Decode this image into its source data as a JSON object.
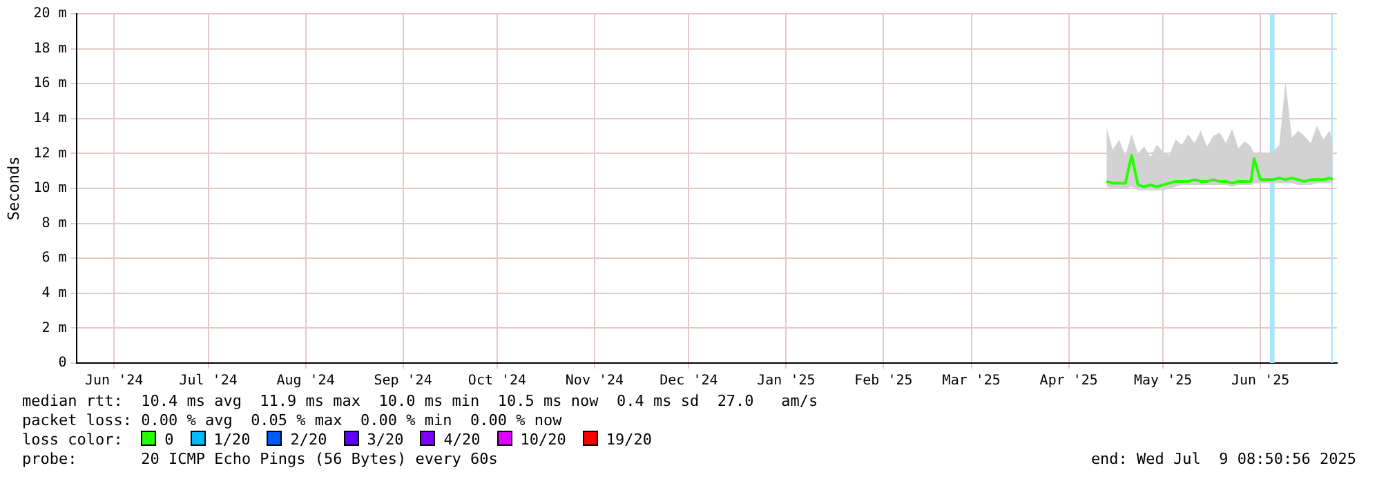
{
  "chart_data": {
    "type": "line",
    "ylabel": "Seconds",
    "legend_title": "loss color:",
    "legend": "bottom",
    "grid": true,
    "marker": "none",
    "line_style": "solid",
    "xlim": [
      "2024-06-03",
      "2025-07-09T08:50"
    ],
    "xticks": [
      {
        "value": "2024-06-15",
        "label": "Jun '24"
      },
      {
        "value": "2024-07-15",
        "label": "Jul '24"
      },
      {
        "value": "2024-08-15",
        "label": "Aug '24"
      },
      {
        "value": "2024-09-15",
        "label": "Sep '24"
      },
      {
        "value": "2024-10-15",
        "label": "Oct '24"
      },
      {
        "value": "2024-11-15",
        "label": "Nov '24"
      },
      {
        "value": "2024-12-15",
        "label": "Dec '24"
      },
      {
        "value": "2025-01-15",
        "label": "Jan '25"
      },
      {
        "value": "2025-02-15",
        "label": "Feb '25"
      },
      {
        "value": "2025-03-15",
        "label": "Mar '25"
      },
      {
        "value": "2025-04-15",
        "label": "Apr '25"
      },
      {
        "value": "2025-05-15",
        "label": "May '25"
      },
      {
        "value": "2025-06-15",
        "label": "Jun '25"
      }
    ],
    "ylim": [
      0,
      20
    ],
    "yticks": [
      0,
      {
        "value": 2,
        "label": "2 m"
      },
      {
        "value": 4,
        "label": "4 m"
      },
      {
        "value": 6,
        "label": "6 m"
      },
      {
        "value": 8,
        "label": "8 m"
      },
      {
        "value": 10,
        "label": "10 m"
      },
      {
        "value": 12,
        "label": "12 m"
      },
      {
        "value": 14,
        "label": "14 m"
      },
      {
        "value": 16,
        "label": "16 m"
      },
      {
        "value": 18,
        "label": "18 m"
      },
      {
        "value": 20,
        "label": "20 m"
      }
    ],
    "x": [
      "2025-04-27",
      "2025-04-29",
      "2025-05-01",
      "2025-05-03",
      "2025-05-05",
      "2025-05-07",
      "2025-05-09",
      "2025-05-11",
      "2025-05-13",
      "2025-05-15",
      "2025-05-17",
      "2025-05-19",
      "2025-05-21",
      "2025-05-23",
      "2025-05-25",
      "2025-05-27",
      "2025-05-29",
      "2025-05-31",
      "2025-06-02",
      "2025-06-04",
      "2025-06-06",
      "2025-06-08",
      "2025-06-10",
      "2025-06-12",
      "2025-06-13",
      "2025-06-15",
      "2025-06-17",
      "2025-06-19",
      "2025-06-21",
      "2025-06-23",
      "2025-06-25",
      "2025-06-27",
      "2025-06-29",
      "2025-07-01",
      "2025-07-03",
      "2025-07-05",
      "2025-07-07",
      "2025-07-08"
    ],
    "series": [
      {
        "name": "0",
        "color": "#26ff00",
        "values": [
          10.4,
          10.3,
          10.3,
          10.3,
          11.9,
          10.2,
          10.1,
          10.2,
          10.1,
          10.2,
          10.3,
          10.4,
          10.4,
          10.4,
          10.5,
          10.4,
          10.4,
          10.5,
          10.4,
          10.4,
          10.3,
          10.4,
          10.4,
          10.4,
          11.7,
          10.5,
          10.5,
          10.5,
          10.6,
          10.5,
          10.6,
          10.5,
          10.4,
          10.5,
          10.5,
          10.5,
          10.6,
          10.5
        ],
        "lower": [
          10.1,
          10.0,
          10.0,
          10.0,
          10.1,
          9.9,
          9.9,
          9.9,
          9.9,
          9.9,
          10.0,
          10.1,
          10.2,
          10.2,
          10.2,
          10.2,
          10.2,
          10.2,
          10.2,
          10.2,
          10.1,
          10.2,
          10.2,
          10.2,
          10.3,
          10.3,
          10.3,
          10.3,
          10.3,
          10.3,
          10.3,
          10.2,
          10.2,
          10.2,
          10.3,
          10.3,
          10.3,
          10.3
        ],
        "upper": [
          13.5,
          12.2,
          12.8,
          11.9,
          13.1,
          12.0,
          12.4,
          11.8,
          12.5,
          12.1,
          11.9,
          12.8,
          12.5,
          13.1,
          12.6,
          13.3,
          12.4,
          13.0,
          13.2,
          12.6,
          13.4,
          12.3,
          12.7,
          12.4,
          12.0,
          12.1,
          12.0,
          12.1,
          12.5,
          16.1,
          12.9,
          13.3,
          13.0,
          12.6,
          13.6,
          12.8,
          13.3,
          12.7
        ]
      },
      {
        "name": "1/20",
        "color": "#00b8ff",
        "values": [
          null,
          null,
          null,
          null,
          null,
          null,
          null,
          null,
          null,
          null,
          null,
          null,
          null,
          null,
          null,
          null,
          null,
          null,
          null,
          null,
          null,
          null,
          null,
          null,
          null,
          null,
          null,
          null,
          null,
          null,
          null,
          null,
          null,
          null,
          null,
          null,
          null,
          null
        ]
      },
      {
        "name": "2/20",
        "color": "#0059ff",
        "values": [
          null,
          null,
          null,
          null,
          null,
          null,
          null,
          null,
          null,
          null,
          null,
          null,
          null,
          null,
          null,
          null,
          null,
          null,
          null,
          null,
          null,
          null,
          null,
          null,
          null,
          null,
          null,
          null,
          null,
          null,
          null,
          null,
          null,
          null,
          null,
          null,
          null,
          null
        ]
      },
      {
        "name": "3/20",
        "color": "#5e00ff",
        "values": [
          null,
          null,
          null,
          null,
          null,
          null,
          null,
          null,
          null,
          null,
          null,
          null,
          null,
          null,
          null,
          null,
          null,
          null,
          null,
          null,
          null,
          null,
          null,
          null,
          null,
          null,
          null,
          null,
          null,
          null,
          null,
          null,
          null,
          null,
          null,
          null,
          null,
          null
        ]
      },
      {
        "name": "4/20",
        "color": "#7e00ff",
        "values": [
          null,
          null,
          null,
          null,
          null,
          null,
          null,
          null,
          null,
          null,
          null,
          null,
          null,
          null,
          null,
          null,
          null,
          null,
          null,
          null,
          null,
          null,
          null,
          null,
          null,
          null,
          null,
          null,
          null,
          null,
          null,
          null,
          null,
          null,
          null,
          null,
          null,
          null
        ]
      },
      {
        "name": "10/20",
        "color": "#dd00ff",
        "values": [
          null,
          null,
          null,
          null,
          null,
          null,
          null,
          null,
          null,
          null,
          null,
          null,
          null,
          null,
          null,
          null,
          null,
          null,
          null,
          null,
          null,
          null,
          null,
          null,
          null,
          null,
          null,
          null,
          null,
          null,
          null,
          null,
          null,
          null,
          null,
          null,
          null,
          null
        ]
      },
      {
        "name": "19/20",
        "color": "#ff0000",
        "values": [
          null,
          null,
          null,
          null,
          null,
          null,
          null,
          null,
          null,
          null,
          null,
          null,
          null,
          null,
          null,
          null,
          null,
          null,
          null,
          null,
          null,
          null,
          null,
          null,
          null,
          null,
          null,
          null,
          null,
          null,
          null,
          null,
          null,
          null,
          null,
          null,
          null,
          null
        ]
      }
    ],
    "bands": [
      {
        "axis": "x",
        "from": "2025-06-18",
        "to": "2025-06-19T12:00",
        "color": "#a8e4ff"
      },
      {
        "axis": "x",
        "from": "2025-07-07T12:00",
        "to": "2025-07-08",
        "color": "#a8e4ff"
      }
    ],
    "annotations": [
      "median rtt:  10.4 ms avg  11.9 ms max  10.0 ms min  10.5 ms now  0.4 ms sd  27.0   am/s",
      "packet loss: 0.00 % avg  0.05 % max  0.00 % min  0.00 % now",
      "probe:       20 ICMP Echo Pings (56 Bytes) every 60s",
      "end: Wed Jul  9 08:50:56 2025"
    ]
  }
}
